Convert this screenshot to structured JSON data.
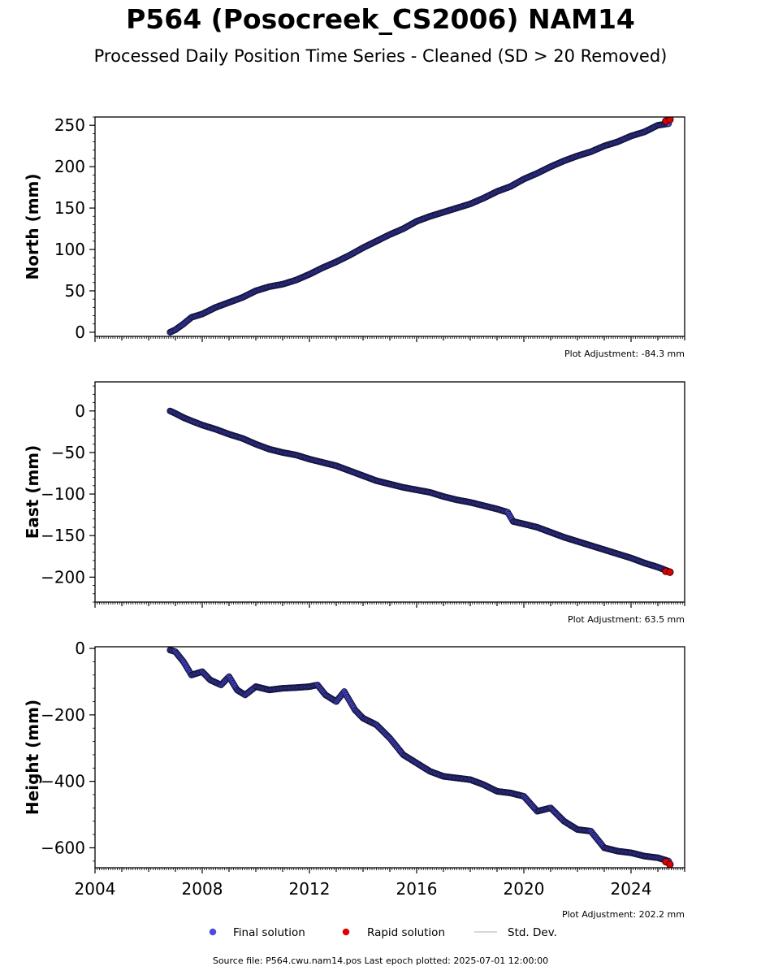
{
  "title": "P564 (Posocreek_CS2006) NAM14",
  "subtitle": "Processed Daily Position Time Series - Cleaned (SD > 20 Removed)",
  "footer": "Source file: P564.cwu.nam14.pos  Last epoch plotted: 2025-07-01 12:00:00",
  "colors": {
    "final": "#4b4bdc",
    "final_edge": "#14143c",
    "rapid": "#e00000",
    "std": "#cccccc"
  },
  "chart_data": [
    {
      "type": "scatter",
      "ylabel": "North (mm)",
      "adjustment": "Plot Adjustment: -84.3 mm",
      "xlim": [
        2004,
        2026
      ],
      "ylim": [
        -5,
        260
      ],
      "yticks": [
        0,
        50,
        100,
        150,
        200,
        250
      ],
      "ytick_labels": [
        "0",
        "50",
        "100",
        "150",
        "200",
        "250"
      ],
      "yminor": 10,
      "series": [
        {
          "name": "Final solution",
          "x": [
            2006.8,
            2007.0,
            2007.3,
            2007.6,
            2008.0,
            2008.5,
            2009.0,
            2009.5,
            2010.0,
            2010.5,
            2011.0,
            2011.5,
            2012.0,
            2012.5,
            2013.0,
            2013.5,
            2014.0,
            2014.5,
            2015.0,
            2015.5,
            2016.0,
            2016.5,
            2017.0,
            2017.5,
            2018.0,
            2018.5,
            2019.0,
            2019.5,
            2020.0,
            2020.5,
            2021.0,
            2021.5,
            2022.0,
            2022.5,
            2023.0,
            2023.5,
            2024.0,
            2024.5,
            2025.0,
            2025.4
          ],
          "y": [
            0,
            3,
            10,
            18,
            22,
            30,
            36,
            42,
            50,
            55,
            58,
            63,
            70,
            78,
            85,
            93,
            102,
            110,
            118,
            125,
            134,
            140,
            145,
            150,
            155,
            162,
            170,
            176,
            185,
            192,
            200,
            207,
            213,
            218,
            225,
            230,
            237,
            242,
            250,
            252
          ]
        },
        {
          "name": "Rapid solution",
          "x": [
            2025.3,
            2025.45
          ],
          "y": [
            255,
            257
          ]
        }
      ]
    },
    {
      "type": "scatter",
      "ylabel": "East (mm)",
      "adjustment": "Plot Adjustment: 63.5 mm",
      "xlim": [
        2004,
        2026
      ],
      "ylim": [
        -230,
        35
      ],
      "yticks": [
        0,
        -50,
        -100,
        -150,
        -200
      ],
      "ytick_labels": [
        "0",
        "−50",
        "−100",
        "−150",
        "−200"
      ],
      "yminor": 10,
      "series": [
        {
          "name": "Final solution",
          "x": [
            2006.8,
            2007.0,
            2007.3,
            2007.6,
            2008.0,
            2008.5,
            2009.0,
            2009.5,
            2010.0,
            2010.5,
            2011.0,
            2011.5,
            2012.0,
            2012.5,
            2013.0,
            2013.5,
            2014.0,
            2014.5,
            2015.0,
            2015.5,
            2016.0,
            2016.5,
            2017.0,
            2017.5,
            2018.0,
            2018.5,
            2019.0,
            2019.4,
            2019.6,
            2020.0,
            2020.5,
            2021.0,
            2021.5,
            2022.0,
            2022.5,
            2023.0,
            2023.5,
            2024.0,
            2024.5,
            2025.0,
            2025.4
          ],
          "y": [
            0,
            -3,
            -8,
            -12,
            -17,
            -22,
            -28,
            -33,
            -40,
            -46,
            -50,
            -53,
            -58,
            -62,
            -66,
            -72,
            -78,
            -84,
            -88,
            -92,
            -95,
            -98,
            -103,
            -107,
            -110,
            -114,
            -118,
            -122,
            -133,
            -136,
            -140,
            -146,
            -152,
            -157,
            -162,
            -167,
            -172,
            -177,
            -183,
            -188,
            -193
          ]
        },
        {
          "name": "Rapid solution",
          "x": [
            2025.3,
            2025.45
          ],
          "y": [
            -193,
            -194
          ]
        }
      ]
    },
    {
      "type": "scatter",
      "ylabel": "Height (mm)",
      "adjustment": "Plot Adjustment: 202.2 mm",
      "xlim": [
        2004,
        2026
      ],
      "ylim": [
        -660,
        5
      ],
      "yticks": [
        0,
        -200,
        -400,
        -600
      ],
      "ytick_labels": [
        "0",
        "−200",
        "−400",
        "−600"
      ],
      "yminor": 40,
      "series": [
        {
          "name": "Final solution",
          "x": [
            2006.8,
            2007.0,
            2007.3,
            2007.6,
            2008.0,
            2008.3,
            2008.7,
            2009.0,
            2009.3,
            2009.6,
            2010.0,
            2010.5,
            2011.0,
            2011.5,
            2012.0,
            2012.3,
            2012.6,
            2013.0,
            2013.3,
            2013.7,
            2014.0,
            2014.5,
            2015.0,
            2015.5,
            2016.0,
            2016.5,
            2017.0,
            2017.5,
            2018.0,
            2018.5,
            2019.0,
            2019.5,
            2020.0,
            2020.5,
            2021.0,
            2021.5,
            2022.0,
            2022.5,
            2023.0,
            2023.5,
            2024.0,
            2024.5,
            2025.0,
            2025.4
          ],
          "y": [
            -5,
            -10,
            -40,
            -80,
            -70,
            -95,
            -110,
            -85,
            -125,
            -140,
            -115,
            -125,
            -120,
            -118,
            -115,
            -110,
            -140,
            -160,
            -130,
            -185,
            -210,
            -230,
            -270,
            -320,
            -345,
            -370,
            -385,
            -390,
            -395,
            -410,
            -430,
            -435,
            -445,
            -490,
            -480,
            -520,
            -545,
            -550,
            -600,
            -610,
            -615,
            -625,
            -630,
            -640
          ]
        },
        {
          "name": "Rapid solution",
          "x": [
            2025.3,
            2025.45
          ],
          "y": [
            -642,
            -650
          ]
        }
      ]
    }
  ],
  "x_axis": {
    "ticks": [
      2004,
      2008,
      2012,
      2016,
      2020,
      2024
    ],
    "tick_labels": [
      "2004",
      "2008",
      "2012",
      "2016",
      "2020",
      "2024"
    ]
  },
  "legend": {
    "placement": "bottom-center",
    "final": "Final solution",
    "rapid": "Rapid solution",
    "std": "Std. Dev."
  }
}
